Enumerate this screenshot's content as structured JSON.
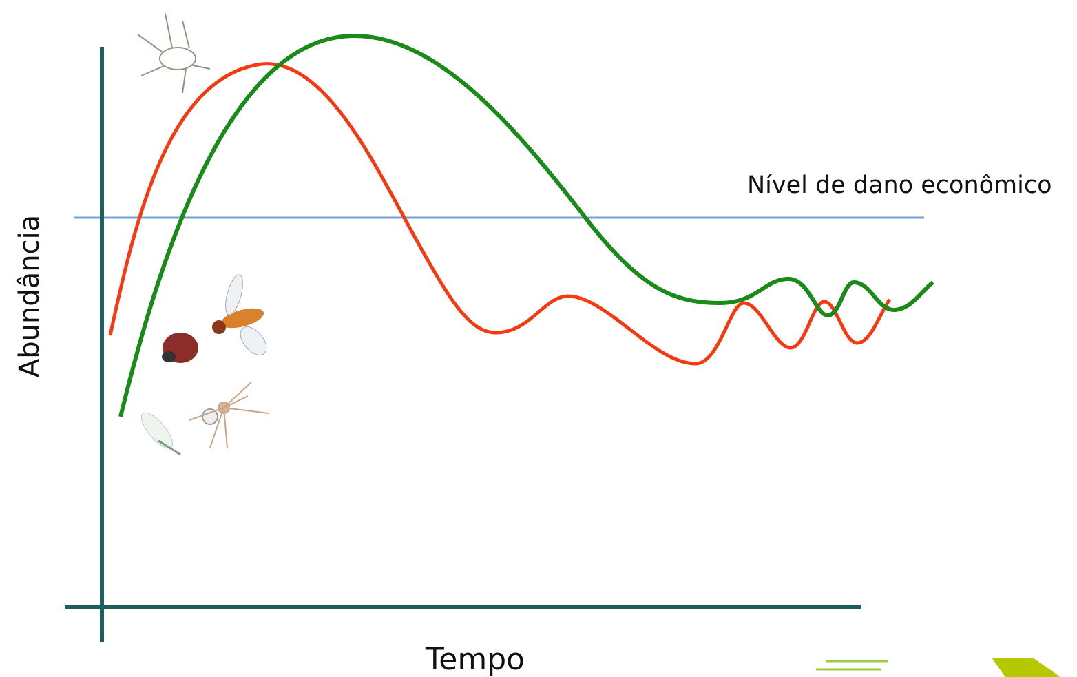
{
  "y_axis_label": "Abundância",
  "x_axis_label": "Tempo",
  "threshold_label": "Nível de dano econômico"
}
